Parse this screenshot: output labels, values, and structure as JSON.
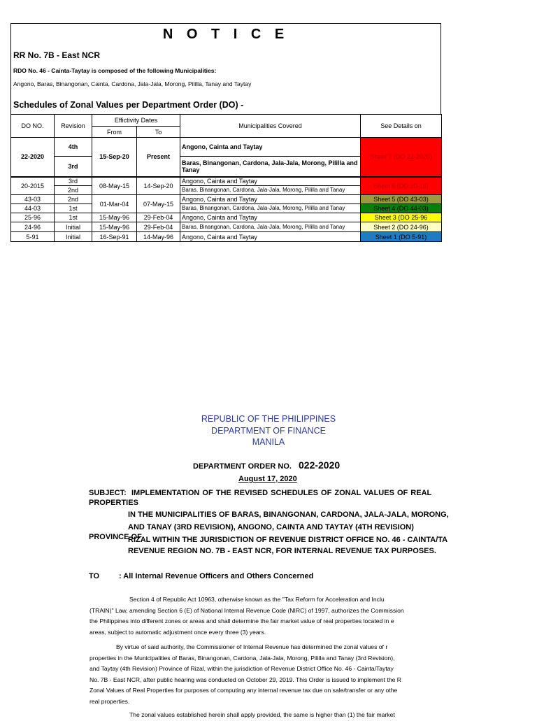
{
  "notice": {
    "title": "N O T I C E",
    "rr": "RR No. 7B - East NCR",
    "rdo": "RDO No. 46 - Cainta-Taytay is composed of the following Municipalities:",
    "municipalities": "Angono, Baras, Binangonan, Cainta, Cardona, Jala-Jala, Morong, Pililla, Tanay and Taytay",
    "schedules_heading": "Schedules of Zonal Values per Department Order (DO) -"
  },
  "table": {
    "headers": {
      "do_no": "DO NO.",
      "revision": "Revision",
      "effectivity": "Effictivity Dates",
      "from": "From",
      "to": "To",
      "municipalities": "Municipalities Covered",
      "details": "See Details on"
    },
    "rows": [
      {
        "do": "22-2020",
        "rev1": "4th",
        "rev2": "3rd",
        "from": "15-Sep-20",
        "to": "Present",
        "mun1": "Angono, Cainta and Taytay",
        "mun2": "Baras, Binangonan, Cardona, Jala-Jala, Morong, Pililla and Tanay",
        "details": "Sheet 7 (DO 22-2020)",
        "color": "#ff0000",
        "text_color": "#c00000"
      },
      {
        "do": "20-2015",
        "rev1": "3rd",
        "rev2": "2nd",
        "from": "08-May-15",
        "to": "14-Sep-20",
        "mun1": "Angono, Cainta and Taytay",
        "mun2": "Baras, Binangonan, Cardona, Jala-Jala, Morong, Pililla and Tanay",
        "details": "Sheet 6 (DO 20-15)",
        "color": "#ff0000",
        "text_color": "#c00000"
      },
      {
        "do": "43-03",
        "rev": "2nd",
        "from": "01-Mar-04",
        "to": "07-May-15",
        "mun": "Angono, Cainta and Taytay",
        "details": "Sheet 5 (DO 43-03)",
        "color": "#9c9a3c"
      },
      {
        "do": "44-03",
        "rev": "1st",
        "mun": "Baras, Binangonan, Cardona, Jala-Jala, Morong, Pililla and Tanay",
        "details": "Sheet 4 (DO 44-03)",
        "color": "#0a7f0a"
      },
      {
        "do": "25-96",
        "rev": "1st",
        "from": "15-May-96",
        "to": "29-Feb-04",
        "mun": "Angono, Cainta and Taytay",
        "details": "Sheet 3 (DO 25-96",
        "color": "#ffff00"
      },
      {
        "do": "24-96",
        "rev": "Initial",
        "from": "15-May-96",
        "to": "29-Feb-04",
        "mun": "Baras, Binangonan, Cardona, Jala-Jala, Morong, Pililla and Tanay",
        "details": "Sheet 2 (DO 24-96)",
        "color": "#ffffc4"
      },
      {
        "do": "5-91",
        "rev": "Initial",
        "from": "16-Sep-91",
        "to": "14-May-96",
        "mun": "Angono, Cainta and Taytay",
        "details": "Sheet 1 (DO 5-91)",
        "color": "#1f7bc4"
      }
    ]
  },
  "order": {
    "header1": "REPUBLIC OF THE PHILIPPINES",
    "header2": "DEPARTMENT OF FINANCE",
    "header3": "MANILA",
    "do_label": "DEPARTMENT ORDER NO.",
    "do_number": "022-2020",
    "date": "August 17, 2020",
    "subject_label": "SUBJECT:",
    "subject_lines": [
      "IMPLEMENTATION   OF   THE   REVISED   SCHEDULES   OF ZONAL VALUES OF REAL",
      "PROPERTIES",
      "IN THE MUNICIPALITIES OF BARAS, BINANGONAN, CARDONA, JALA-JALA, MORONG,",
      "AND TANAY (3RD REVISION), ANGONO, CAINTA AND TAYTAY (4TH REVISION)",
      "RIZAL WITHIN THE JURISDICTION OF REVENUE DISTRICT OFFICE NO. 46 - CAINTA/TA",
      "REVENUE REGION NO. 7B - EAST NCR, FOR INTERNAL REVENUE TAX PURPOSES."
    ],
    "province_of": "PROVINCE OF",
    "to_label": "TO",
    "to_text": ":   All Internal Revenue Officers and Others Concerned",
    "paragraphs": [
      [
        "Section  4  of  Republic  Act  10963,  otherwise   known  as  the  \"Tax Reform for Acceleration and Inclu",
        "(TRAIN)\" Law, amending Section 6 (E) of National Internal Revenue Code (NIRC) of 1997, authorizes the Commission",
        "the Philippines into different zones or areas and shall determine the fair market value of real properties located in e",
        "areas, subject to automatic adjustment once every three (3) years."
      ],
      [
        "By virtue  of  said authority,  the  Commissioner of Internal Revenue has determined  the zonal  values  of  r",
        "properties in the Municipalities of Baras, Binangonan, Cardona, Jala-Jala, Morong, Pililla and Tanay (3rd Revision),",
        "and Taytay (4th Revision) Province of Rizal, within the jurisdiction of Revenue District Office No. 46 - Cainta/Taytay",
        "No. 7B - East NCR, after public hearing was conducted on October 29, 2019. This Order is issued to implement the R",
        "Zonal Values of Real Properties for purposes of computing any internal revenue tax due on sale/transfer or any othe",
        "real properties."
      ],
      [
        "The zonal values established herein shall apply provided, the same is  higher than (1)  the  fair market"
      ]
    ]
  }
}
